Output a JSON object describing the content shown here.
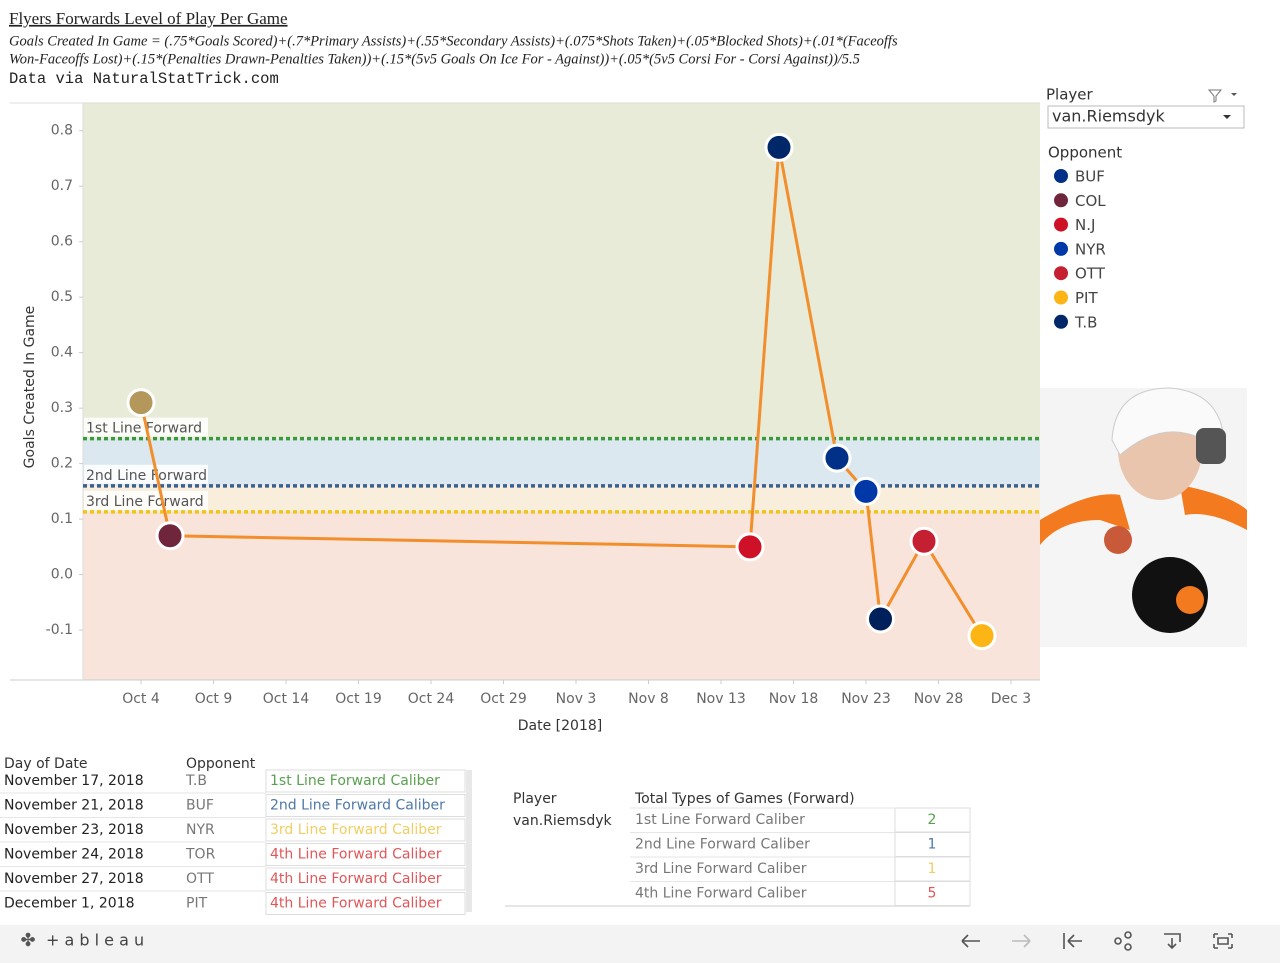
{
  "header": {
    "title": "Flyers Forwards Level of Play Per Game",
    "formula": [
      "Goals Created In Game = (.75*Goals Scored)+(.7*Primary Assists)+(.55*Secondary Assists)+(.075*Shots Taken)+(.05*Blocked Shots)+(.01*(Faceoffs",
      "Won-Faceoffs Lost)+(.15*(Penalties Drawn-Penalties Taken))+(.15*(5v5 Goals On Ice For - Against))+(.05*(5v5 Corsi For - Corsi Against))/5.5"
    ],
    "source": "Data via NaturalStatTrick.com"
  },
  "chart_data": {
    "type": "line",
    "x_label": "Date [2018]",
    "y_label": "Goals Created In Game",
    "x": [
      "2018-10-04",
      "2018-10-06",
      "2018-11-15",
      "2018-11-17",
      "2018-11-21",
      "2018-11-23",
      "2018-11-24",
      "2018-11-27",
      "2018-12-01"
    ],
    "values": [
      0.31,
      0.07,
      0.05,
      0.77,
      0.21,
      0.15,
      -0.08,
      0.06,
      -0.11
    ],
    "logo_colors": [
      "#b4975a",
      "#6f263d",
      "#ce1126",
      "#002868",
      "#003087",
      "#0038a8",
      "#00205b",
      "#c52032",
      "#fcb514"
    ],
    "color": "#f28e2b",
    "xlim": [
      "2018-09-30",
      "2018-12-05"
    ],
    "xticks": [
      {
        "value": "2018-10-04",
        "label": "Oct 4"
      },
      {
        "value": "2018-10-09",
        "label": "Oct 9"
      },
      {
        "value": "2018-10-14",
        "label": "Oct 14"
      },
      {
        "value": "2018-10-19",
        "label": "Oct 19"
      },
      {
        "value": "2018-10-24",
        "label": "Oct 24"
      },
      {
        "value": "2018-10-29",
        "label": "Oct 29"
      },
      {
        "value": "2018-11-03",
        "label": "Nov 3"
      },
      {
        "value": "2018-11-08",
        "label": "Nov 8"
      },
      {
        "value": "2018-11-13",
        "label": "Nov 13"
      },
      {
        "value": "2018-11-18",
        "label": "Nov 18"
      },
      {
        "value": "2018-11-23",
        "label": "Nov 23"
      },
      {
        "value": "2018-11-28",
        "label": "Nov 28"
      },
      {
        "value": "2018-12-03",
        "label": "Dec 3"
      }
    ],
    "ylim": [
      -0.19,
      0.85
    ],
    "yticks": [
      {
        "value": -0.1,
        "label": "-0.1"
      },
      {
        "value": 0,
        "label": "0.0"
      },
      0.1,
      0.2,
      0.3,
      0.4,
      0.5,
      0.6,
      0.7,
      0.8
    ],
    "reference_lines": [
      {
        "label": "1st Line Forward",
        "value": 0.245,
        "color": "#3a9a3a"
      },
      {
        "label": "2nd Line Forward",
        "value": 0.16,
        "color": "#3b5f8f"
      },
      {
        "label": "3rd Line Forward",
        "value": 0.113,
        "color": "#f0c419"
      }
    ],
    "bands": [
      "#e7ebd8",
      "#dce8ef",
      "#f8eedb",
      "#f8e4da"
    ]
  },
  "filter": {
    "title": "Player",
    "value": "van.Riemsdyk"
  },
  "legend": {
    "title": "Opponent",
    "items": [
      {
        "name": "BUF",
        "color": "#003087"
      },
      {
        "name": "COL",
        "color": "#6f263d"
      },
      {
        "name": "N.J",
        "color": "#ce1126"
      },
      {
        "name": "NYR",
        "color": "#0038a8"
      },
      {
        "name": "OTT",
        "color": "#c52032"
      },
      {
        "name": "PIT",
        "color": "#fcb514"
      },
      {
        "name": "T.B",
        "color": "#002868"
      }
    ]
  },
  "games_table": {
    "headers": [
      "Day of Date",
      "Opponent"
    ],
    "rows": [
      {
        "date": "November 17, 2018",
        "opponent": "T.B",
        "caliber": "1st Line Forward Caliber",
        "color": "#59a14f"
      },
      {
        "date": "November 21, 2018",
        "opponent": "BUF",
        "caliber": "2nd Line Forward Caliber",
        "color": "#4e79a7"
      },
      {
        "date": "November 23, 2018",
        "opponent": "NYR",
        "caliber": "3rd Line Forward Caliber",
        "color": "#f1ce63"
      },
      {
        "date": "November 24, 2018",
        "opponent": "TOR",
        "caliber": "4th Line Forward Caliber",
        "color": "#e15759"
      },
      {
        "date": "November 27, 2018",
        "opponent": "OTT",
        "caliber": "4th Line Forward Caliber",
        "color": "#e15759"
      },
      {
        "date": "December 1, 2018",
        "opponent": "PIT",
        "caliber": "4th Line Forward Caliber",
        "color": "#e15759"
      }
    ]
  },
  "summary_table": {
    "headers": [
      "Player",
      "Total Types of Games (Forward)"
    ],
    "player": "van.Riemsdyk",
    "rows": [
      {
        "type": "1st Line Forward Caliber",
        "count": 2,
        "color": "#59a14f"
      },
      {
        "type": "2nd Line Forward Caliber",
        "count": 1,
        "color": "#4e79a7"
      },
      {
        "type": "3rd Line Forward Caliber",
        "count": 1,
        "color": "#f1ce63"
      },
      {
        "type": "4th Line Forward Caliber",
        "count": 5,
        "color": "#e15759"
      }
    ]
  },
  "footer": {
    "brand": "+ a b l e a u"
  }
}
